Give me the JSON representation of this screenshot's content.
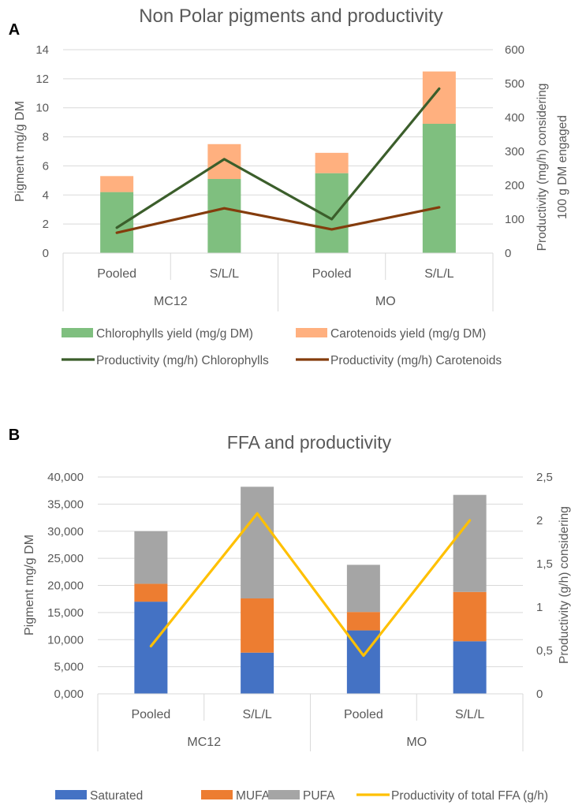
{
  "panels": [
    {
      "label": "A",
      "title": "Non Polar pigments and productivity"
    },
    {
      "label": "B",
      "title": "FFA and productivity"
    }
  ],
  "chart_data": [
    {
      "type": "bar",
      "stacked": true,
      "title": "Non Polar pigments and productivity",
      "panel_label": "A",
      "categories": [
        "Pooled",
        "S/L/L",
        "Pooled",
        "S/L/L"
      ],
      "groups": [
        {
          "name": "MC12",
          "span": [
            0,
            1
          ]
        },
        {
          "name": "MO",
          "span": [
            2,
            3
          ]
        }
      ],
      "ylabel": "Pigment mg/g DM",
      "y2label": [
        "Productivity (mg/h) considering",
        "100 g DM engaged"
      ],
      "ylim": [
        0,
        14
      ],
      "yticks": [
        "0",
        "2",
        "4",
        "6",
        "8",
        "10",
        "12",
        "14"
      ],
      "y2lim": [
        0,
        600
      ],
      "y2ticks": [
        "0",
        "100",
        "200",
        "300",
        "400",
        "500",
        "600"
      ],
      "grid": true,
      "legend_position": "bottom",
      "series": [
        {
          "name": "Chlorophylls yield (mg/g DM)",
          "kind": "bar",
          "axis": "left",
          "color": "#7fbf7f",
          "values": [
            4.2,
            5.1,
            5.5,
            8.9
          ]
        },
        {
          "name": "Carotenoids yield (mg/g DM)",
          "kind": "bar",
          "axis": "left",
          "color": "#ffb07f",
          "values": [
            1.1,
            2.4,
            1.4,
            3.6
          ]
        },
        {
          "name": "Productivity (mg/h) Chlorophylls",
          "kind": "line",
          "axis": "right",
          "color": "#3b5e2b",
          "values": [
            75,
            277,
            100,
            485
          ]
        },
        {
          "name": "Productivity (mg/h) Carotenoids",
          "kind": "line",
          "axis": "right",
          "color": "#843c0c",
          "values": [
            60,
            132,
            70,
            135
          ]
        }
      ]
    },
    {
      "type": "bar",
      "stacked": true,
      "title": "FFA and productivity",
      "panel_label": "B",
      "categories": [
        "Pooled",
        "S/L/L",
        "Pooled",
        "S/L/L"
      ],
      "groups": [
        {
          "name": "MC12",
          "span": [
            0,
            1
          ]
        },
        {
          "name": "MO",
          "span": [
            2,
            3
          ]
        }
      ],
      "ylabel": "Pigment mg/g DM",
      "y2label": [
        "Productivity (g/h) considering"
      ],
      "ylim": [
        0,
        40000
      ],
      "yticks": [
        "0,000",
        "5,000",
        "10,000",
        "15,000",
        "20,000",
        "25,000",
        "30,000",
        "35,000",
        "40,000"
      ],
      "y2lim": [
        0,
        2.5
      ],
      "y2ticks": [
        "0",
        "0,5",
        "1",
        "1,5",
        "2",
        "2,5"
      ],
      "grid": true,
      "legend_position": "bottom",
      "series": [
        {
          "name": "Saturated",
          "kind": "bar",
          "axis": "left",
          "color": "#4472c4",
          "values": [
            17000,
            7600,
            11700,
            9700
          ]
        },
        {
          "name": "MUFA",
          "kind": "bar",
          "axis": "left",
          "color": "#ed7d31",
          "values": [
            3300,
            10000,
            3400,
            9100
          ]
        },
        {
          "name": "PUFA",
          "kind": "bar",
          "axis": "left",
          "color": "#a5a5a5",
          "values": [
            9700,
            20600,
            8700,
            17900
          ]
        },
        {
          "name": "Productivity of total FFA (g/h)",
          "kind": "line",
          "axis": "right",
          "color": "#ffc000",
          "values": [
            0.55,
            2.08,
            0.44,
            2.0
          ]
        }
      ]
    }
  ]
}
